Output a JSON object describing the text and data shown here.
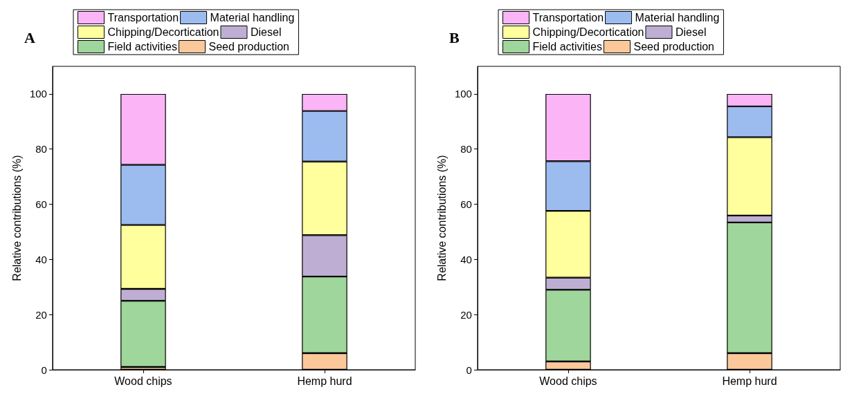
{
  "chart_data": [
    {
      "type": "bar",
      "title": "A",
      "ylabel": "Relative contributions (%)",
      "categories": [
        "Wood chips",
        "Hemp hurd"
      ],
      "stacked": true,
      "ylim": [
        0,
        110
      ],
      "yticks": [
        0,
        20,
        40,
        60,
        80,
        100
      ],
      "grid": false,
      "legend": "top",
      "series": [
        {
          "name": "Seed production",
          "color": "#fbc89b",
          "values": [
            1,
            6
          ]
        },
        {
          "name": "Field activities",
          "color": "#9fd69b",
          "values": [
            24,
            27.8
          ]
        },
        {
          "name": "Diesel",
          "color": "#bfaed3",
          "values": [
            4.3,
            15
          ]
        },
        {
          "name": "Chipping/Decortication",
          "color": "#ffff9e",
          "values": [
            23.2,
            26.7
          ]
        },
        {
          "name": "Material handling",
          "color": "#9cbcf0",
          "values": [
            21.8,
            18.3
          ]
        },
        {
          "name": "Transportation",
          "color": "#fbb5f7",
          "values": [
            25.7,
            6.2
          ]
        }
      ]
    },
    {
      "type": "bar",
      "title": "B",
      "ylabel": "Relative contributions (%)",
      "categories": [
        "Wood chips",
        "Hemp hurd"
      ],
      "stacked": true,
      "ylim": [
        0,
        110
      ],
      "yticks": [
        0,
        20,
        40,
        60,
        80,
        100
      ],
      "grid": false,
      "legend": "top",
      "series": [
        {
          "name": "Seed production",
          "color": "#fbc89b",
          "values": [
            3,
            6
          ]
        },
        {
          "name": "Field activities",
          "color": "#9fd69b",
          "values": [
            26,
            47.4
          ]
        },
        {
          "name": "Diesel",
          "color": "#bfaed3",
          "values": [
            4.4,
            2.5
          ]
        },
        {
          "name": "Chipping/Decortication",
          "color": "#ffff9e",
          "values": [
            24.2,
            28.4
          ]
        },
        {
          "name": "Material handling",
          "color": "#9cbcf0",
          "values": [
            18,
            11.2
          ]
        },
        {
          "name": "Transportation",
          "color": "#fbb5f7",
          "values": [
            24.4,
            4.5
          ]
        }
      ]
    }
  ]
}
